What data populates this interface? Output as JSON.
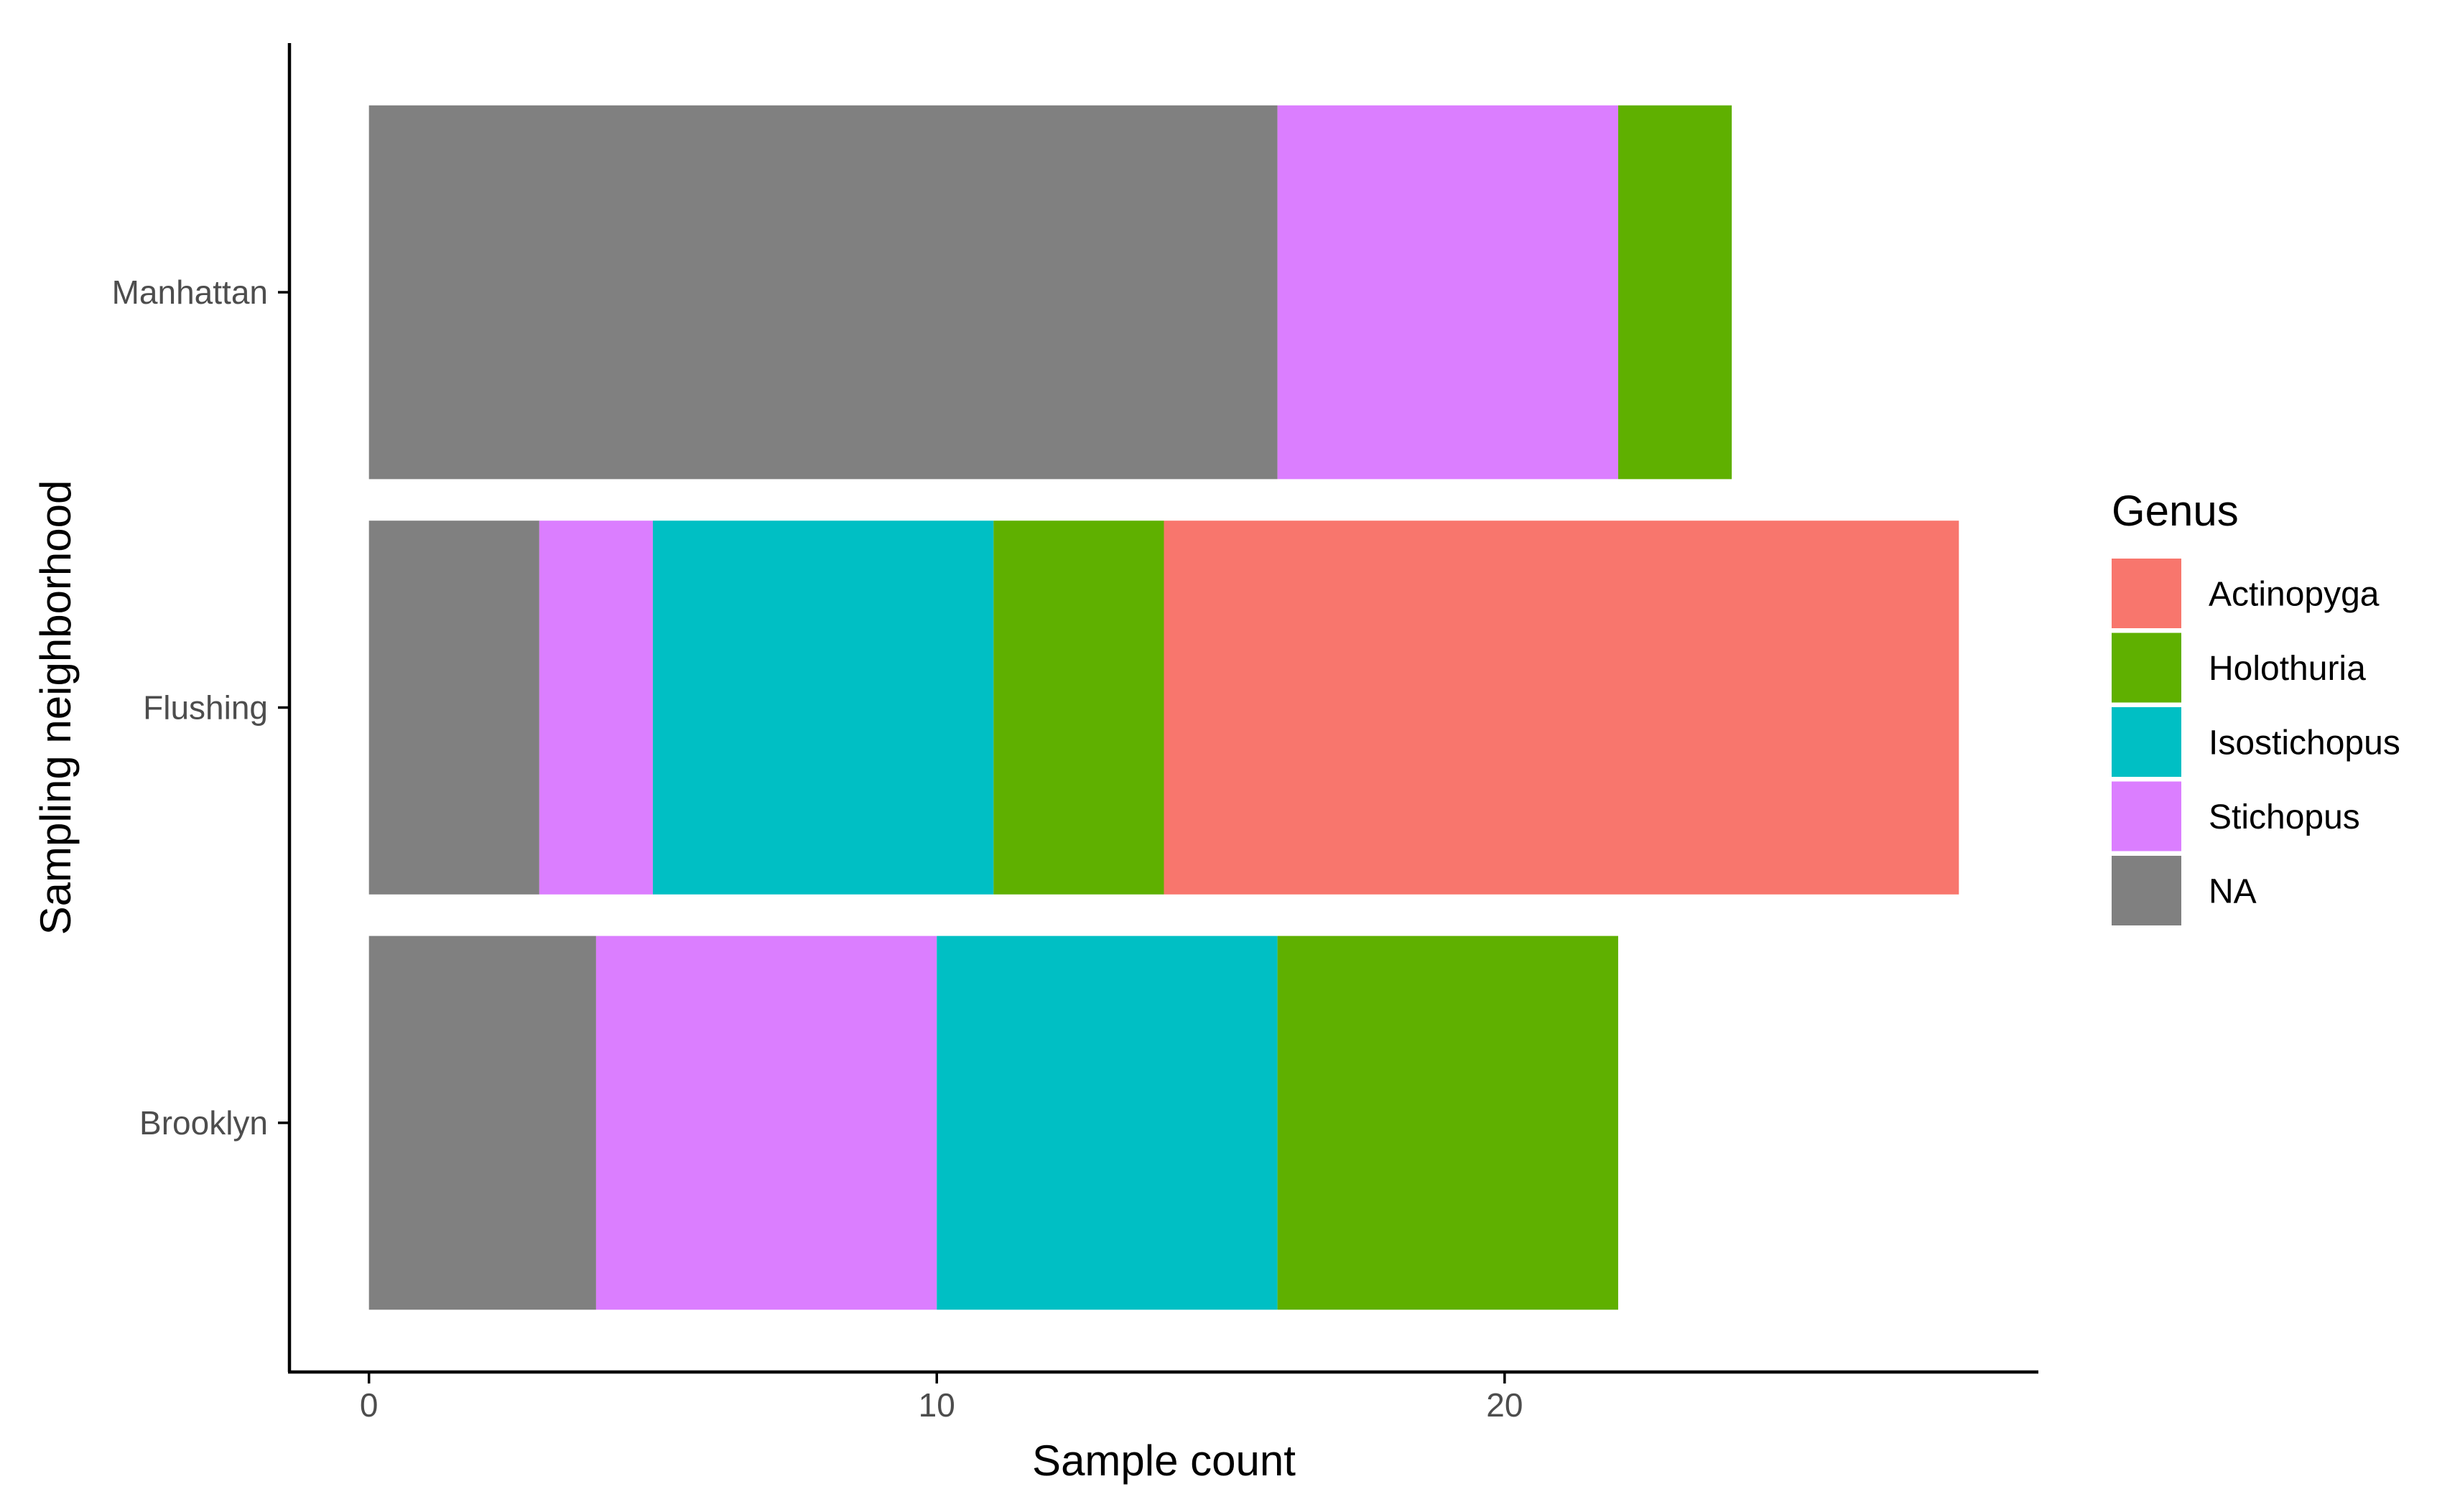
{
  "chart_data": {
    "type": "bar",
    "orientation": "horizontal",
    "stacked": true,
    "title": "",
    "xlabel": "Sample count",
    "ylabel": "Sampling neighborhood",
    "categories": [
      "Brooklyn",
      "Flushing",
      "Manhattan"
    ],
    "xlim": [
      -1.4,
      29.4
    ],
    "xticks": [
      0,
      10,
      20
    ],
    "grid": false,
    "legend_position": "right",
    "legend_title": "Genus",
    "legend_order": [
      "Actinopyga",
      "Holothuria",
      "Isostichopus",
      "Stichopus",
      "NA"
    ],
    "stack_order": [
      "NA",
      "Stichopus",
      "Isostichopus",
      "Holothuria",
      "Actinopyga"
    ],
    "series": [
      {
        "name": "Actinopyga",
        "color": "#F8766D",
        "values": [
          0,
          14,
          0
        ]
      },
      {
        "name": "Holothuria",
        "color": "#5FB000",
        "values": [
          6,
          3,
          2
        ]
      },
      {
        "name": "Isostichopus",
        "color": "#00BFC4",
        "values": [
          6,
          6,
          0
        ]
      },
      {
        "name": "Stichopus",
        "color": "#DB7EFF",
        "values": [
          6,
          2,
          6
        ]
      },
      {
        "name": "NA",
        "color": "#808080",
        "values": [
          4,
          3,
          16
        ]
      }
    ]
  }
}
